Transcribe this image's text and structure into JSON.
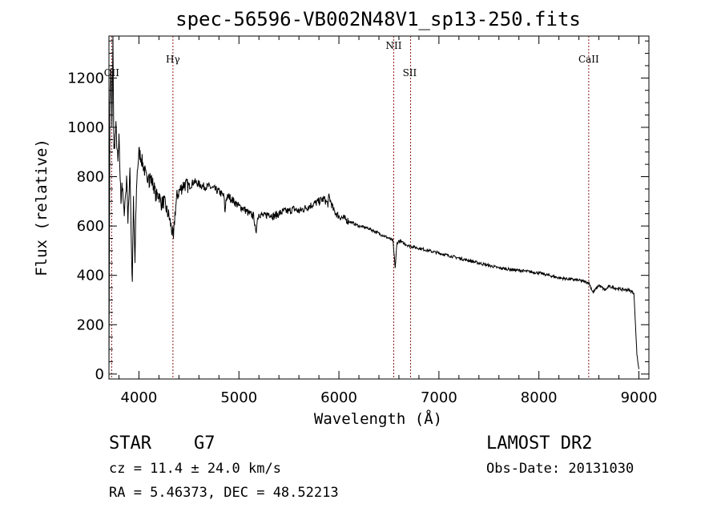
{
  "chart_data": {
    "type": "line",
    "title": "spec-56596-VB002N48V1_sp13-250.fits",
    "xlabel": "Wavelength (Å)",
    "ylabel": "Flux (relative)",
    "xlim": [
      3700,
      9100
    ],
    "ylim": [
      -20,
      1370
    ],
    "x_ticks": [
      4000,
      5000,
      6000,
      7000,
      8000,
      9000
    ],
    "y_ticks": [
      0,
      200,
      400,
      600,
      800,
      1000,
      1200
    ],
    "grid": false,
    "line_color": "#000000",
    "marker_color": "#8b1a1a",
    "spectrum": {
      "x": [
        3700,
        3710,
        3720,
        3730,
        3740,
        3750,
        3770,
        3790,
        3800,
        3820,
        3830,
        3850,
        3860,
        3880,
        3890,
        3910,
        3930,
        3934,
        3945,
        3960,
        3968,
        3980,
        4000,
        4020,
        4040,
        4060,
        4080,
        4100,
        4102,
        4110,
        4130,
        4150,
        4170,
        4200,
        4220,
        4250,
        4280,
        4300,
        4320,
        4340,
        4345,
        4360,
        4380,
        4400,
        4450,
        4500,
        4550,
        4600,
        4650,
        4700,
        4750,
        4800,
        4850,
        4861,
        4870,
        4900,
        4950,
        5000,
        5050,
        5100,
        5150,
        5170,
        5180,
        5200,
        5250,
        5300,
        5350,
        5400,
        5450,
        5500,
        5550,
        5600,
        5650,
        5700,
        5750,
        5800,
        5850,
        5890,
        5900,
        5950,
        6000,
        6050,
        6100,
        6200,
        6300,
        6400,
        6500,
        6540,
        6563,
        6580,
        6600,
        6700,
        6800,
        6900,
        7000,
        7200,
        7400,
        7600,
        7800,
        8000,
        8200,
        8400,
        8500,
        8542,
        8600,
        8662,
        8700,
        8800,
        8900,
        8950,
        8980,
        9000
      ],
      "y": [
        20,
        1100,
        1250,
        1000,
        1350,
        900,
        1000,
        850,
        950,
        700,
        780,
        650,
        700,
        800,
        600,
        850,
        400,
        390,
        700,
        450,
        620,
        800,
        900,
        880,
        850,
        820,
        780,
        840,
        750,
        800,
        780,
        760,
        720,
        730,
        690,
        700,
        660,
        640,
        600,
        560,
        540,
        650,
        720,
        740,
        770,
        760,
        780,
        770,
        760,
        760,
        750,
        740,
        720,
        650,
        710,
        720,
        700,
        680,
        670,
        650,
        640,
        560,
        620,
        650,
        640,
        650,
        640,
        650,
        660,
        660,
        670,
        660,
        670,
        680,
        690,
        700,
        710,
        690,
        720,
        660,
        640,
        630,
        620,
        600,
        590,
        570,
        550,
        540,
        430,
        530,
        540,
        520,
        510,
        500,
        490,
        470,
        450,
        430,
        420,
        410,
        390,
        380,
        370,
        330,
        360,
        340,
        355,
        345,
        340,
        330,
        80,
        20
      ]
    },
    "lines": [
      {
        "name": "OII",
        "x": 3727
      },
      {
        "name": "Hγ",
        "x": 4340
      },
      {
        "name": "NII",
        "x": 6548
      },
      {
        "name": "SII",
        "x": 6717
      },
      {
        "name": "CaII",
        "x": 8498
      }
    ]
  },
  "info": {
    "object_class": "STAR",
    "subclass": "G7",
    "cz": "cz = 11.4 ± 24.0 km/s",
    "coords": "RA =   5.46373, DEC =  48.52213",
    "survey": "LAMOST DR2",
    "obs_date": "Obs-Date: 20131030"
  }
}
